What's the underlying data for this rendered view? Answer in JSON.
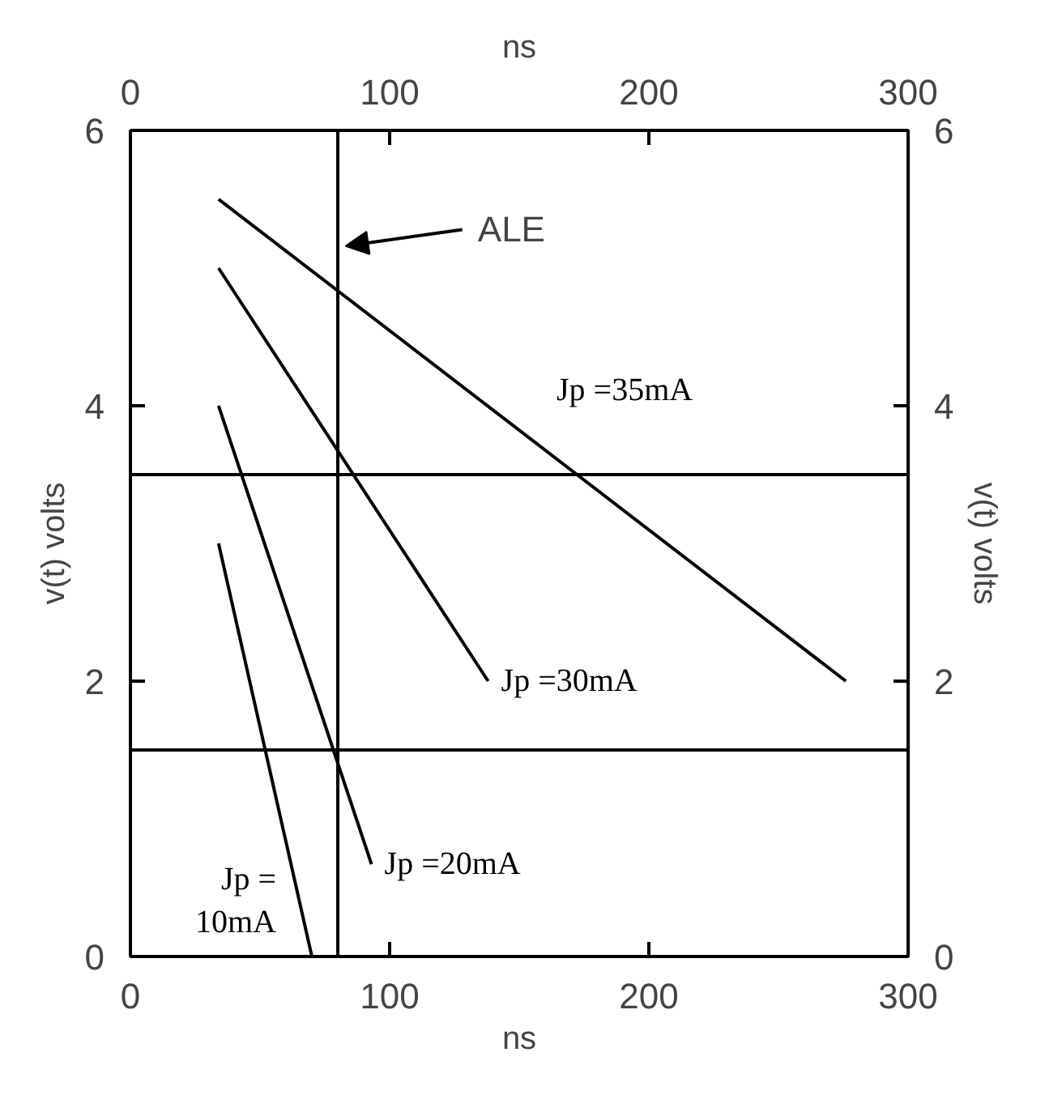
{
  "chart_data": {
    "type": "line",
    "xlabel": "ns",
    "x2label": "ns",
    "ylabel": "v(t) volts",
    "y2label": "v(t) volts",
    "xlim": [
      0,
      300
    ],
    "xticks": [
      0,
      100,
      200,
      300
    ],
    "x2lim": [
      0,
      300
    ],
    "x2ticks": [
      0,
      100,
      200,
      300
    ],
    "ylim": [
      0,
      6
    ],
    "yticks": [
      0,
      2,
      4,
      6
    ],
    "y2lim": [
      0,
      6
    ],
    "y2ticks": [
      0,
      2,
      4,
      6
    ],
    "grid": false,
    "line_style": "solid",
    "marker": "none",
    "series": [
      {
        "name": "Jp =35mA",
        "color": "#000000",
        "x": [
          34,
          276
        ],
        "values": [
          5.5,
          2.0
        ]
      },
      {
        "name": "Jp =30mA",
        "color": "#000000",
        "x": [
          34,
          138
        ],
        "values": [
          5.0,
          2.0
        ]
      },
      {
        "name": "Jp =20mA",
        "color": "#000000",
        "x": [
          34,
          93
        ],
        "values": [
          4.0,
          0.67
        ]
      },
      {
        "name": "Jp =\n10mA",
        "color": "#000000",
        "x": [
          34,
          70
        ],
        "values": [
          3.0,
          0.0
        ]
      }
    ],
    "ref_lines": [
      {
        "axis": "y",
        "value": 3.5,
        "color": "#000000"
      },
      {
        "axis": "y",
        "value": 1.5,
        "color": "#000000"
      },
      {
        "axis": "x",
        "value": 80,
        "label": "ALE",
        "color": "#000000"
      }
    ]
  }
}
